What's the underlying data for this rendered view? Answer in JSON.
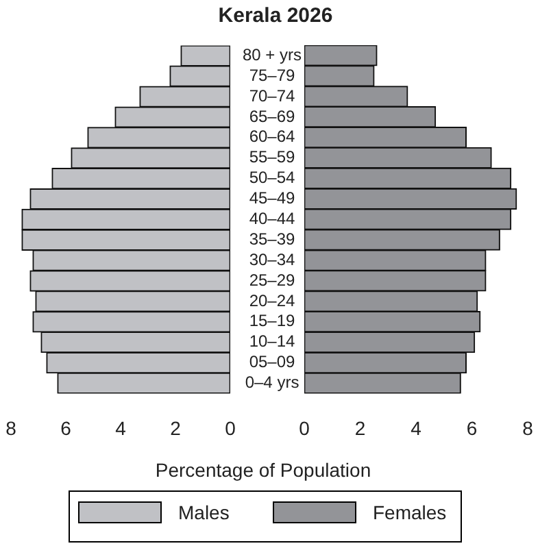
{
  "chart_data": [
    {
      "type": "bar",
      "orientation": "horizontal",
      "title": "Kerala 2026",
      "xlabel": "Percentage of Population",
      "categories": [
        "80 + yrs",
        "75–79",
        "70–74",
        "65–69",
        "60–64",
        "55–59",
        "50–54",
        "45–49",
        "40–44",
        "35–39",
        "30–34",
        "25–29",
        "20–24",
        "15–19",
        "10–14",
        "05–09",
        "0–4 yrs"
      ],
      "series": [
        {
          "name": "Males",
          "color": "#c0c1c5",
          "values": [
            1.8,
            2.2,
            3.3,
            4.2,
            5.2,
            5.8,
            6.5,
            7.3,
            7.6,
            7.6,
            7.2,
            7.3,
            7.1,
            7.2,
            6.9,
            6.7,
            6.3
          ]
        }
      ],
      "xlim": [
        8,
        0
      ],
      "xticks": [
        8,
        6,
        4,
        2,
        0
      ],
      "legend": "bottom"
    },
    {
      "type": "bar",
      "orientation": "horizontal",
      "categories": [
        null,
        null,
        null,
        null,
        null,
        null,
        null,
        null,
        null,
        null,
        null,
        null,
        null,
        null,
        null,
        null,
        null
      ],
      "series": [
        {
          "name": "Females",
          "color": "#939498",
          "values": [
            2.6,
            2.5,
            3.7,
            4.7,
            5.8,
            6.7,
            7.4,
            7.6,
            7.4,
            7.0,
            6.5,
            6.5,
            6.2,
            6.3,
            6.1,
            5.8,
            5.6
          ]
        }
      ],
      "xlim": [
        0,
        8
      ],
      "xticks": [
        0,
        2,
        4,
        6,
        8
      ],
      "tick_labels": "x",
      "legend": "bottom"
    }
  ]
}
